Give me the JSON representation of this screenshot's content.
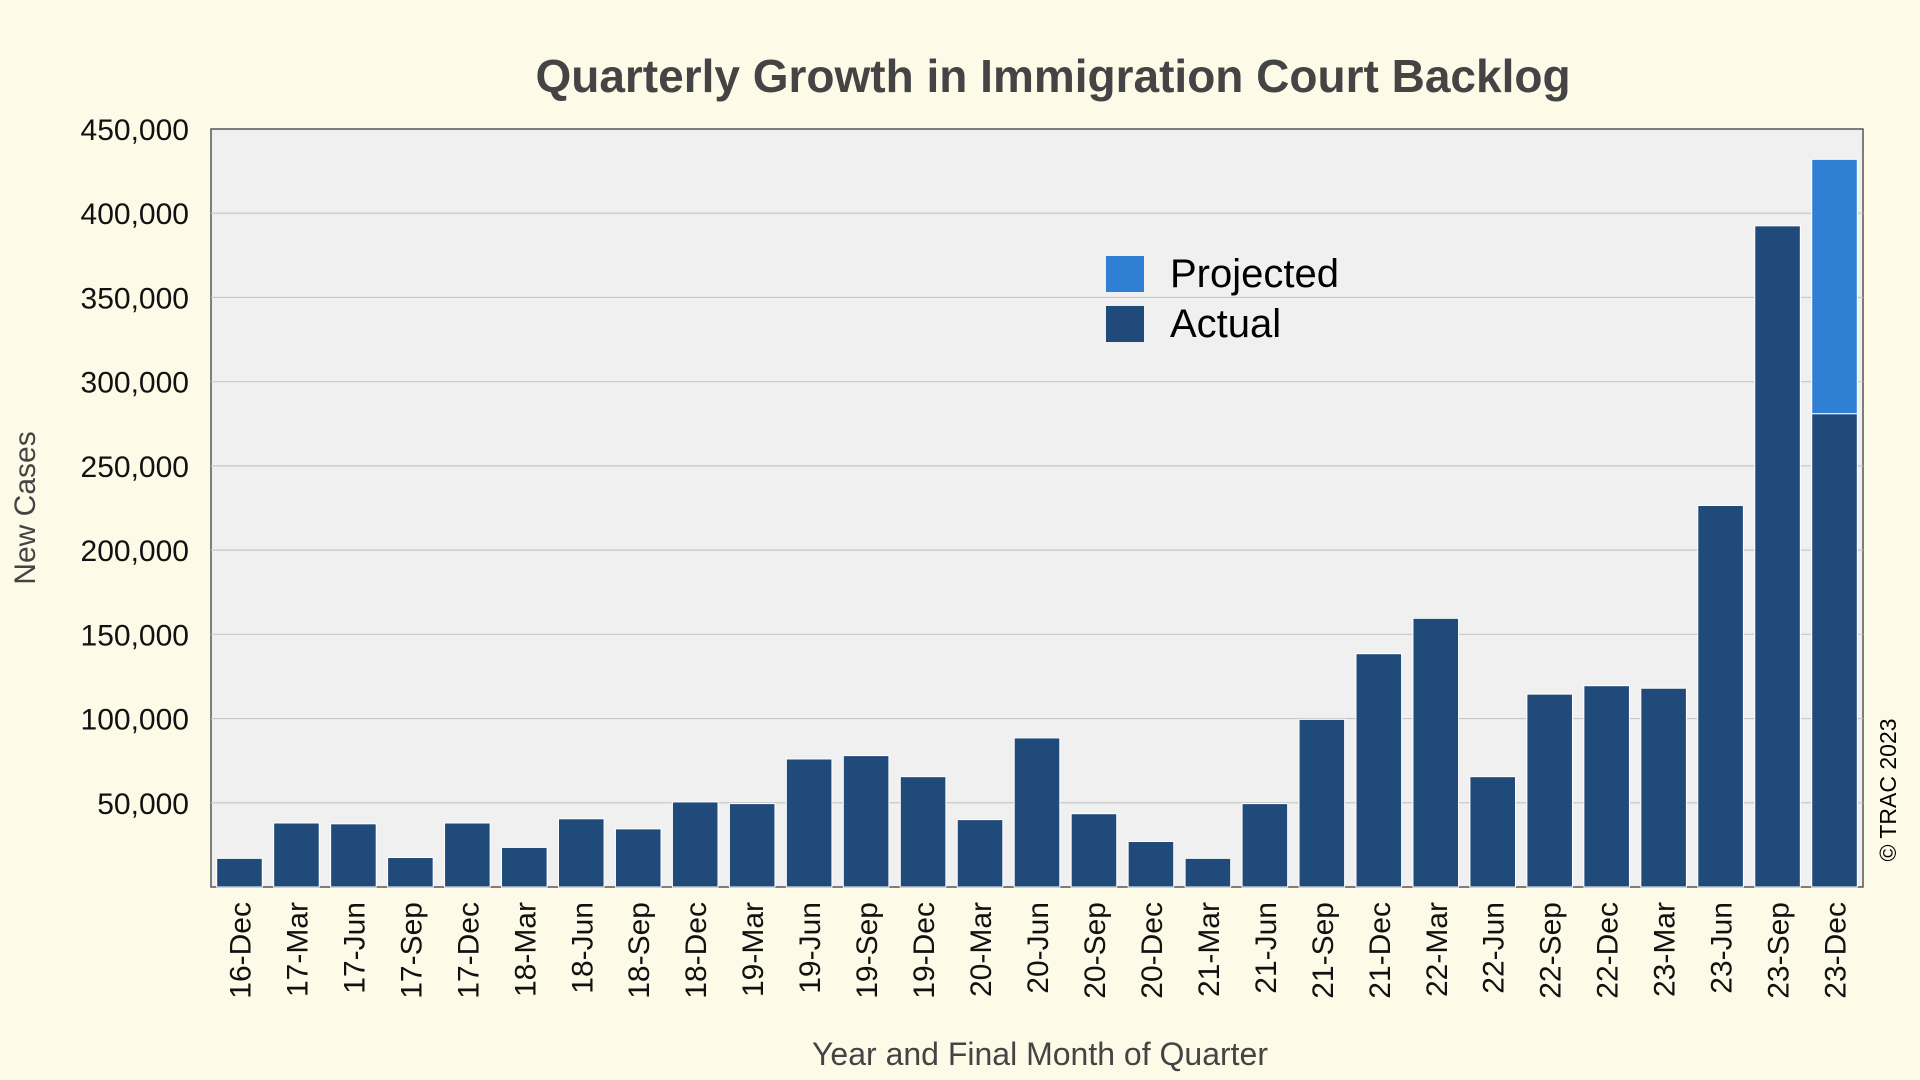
{
  "chart_data": {
    "type": "bar",
    "title": "Quarterly Growth in Immigration Court Backlog",
    "xlabel": "Year and Final Month of Quarter",
    "ylabel": "New Cases",
    "ylim": [
      0,
      450000
    ],
    "yticks": [
      50000,
      100000,
      150000,
      200000,
      250000,
      300000,
      350000,
      400000,
      450000
    ],
    "ytick_labels": [
      "50,000",
      "100,000",
      "150,000",
      "200,000",
      "250,000",
      "300,000",
      "350,000",
      "400,000",
      "450,000"
    ],
    "grid": true,
    "legend_position": "upper-middle",
    "categories": [
      "16-Dec",
      "17-Mar",
      "17-Jun",
      "17-Sep",
      "17-Dec",
      "18-Mar",
      "18-Jun",
      "18-Sep",
      "18-Dec",
      "19-Mar",
      "19-Jun",
      "19-Sep",
      "19-Dec",
      "20-Mar",
      "20-Jun",
      "20-Sep",
      "20-Dec",
      "21-Mar",
      "21-Jun",
      "21-Sep",
      "21-Dec",
      "22-Mar",
      "22-Jun",
      "22-Sep",
      "22-Dec",
      "23-Mar",
      "23-Jun",
      "23-Sep",
      "23-Dec"
    ],
    "series": [
      {
        "name": "Actual",
        "color": "#1f4a7a",
        "values": [
          17000,
          38000,
          37500,
          17500,
          38000,
          23500,
          40500,
          34500,
          50500,
          49500,
          76000,
          78000,
          65500,
          40000,
          88500,
          43500,
          27000,
          17000,
          49500,
          99500,
          138500,
          159500,
          65500,
          114500,
          119500,
          118000,
          226500,
          392500,
          281000
        ]
      },
      {
        "name": "Projected",
        "color": "#2f7fd4",
        "values": [
          0,
          0,
          0,
          0,
          0,
          0,
          0,
          0,
          0,
          0,
          0,
          0,
          0,
          0,
          0,
          0,
          0,
          0,
          0,
          0,
          0,
          0,
          0,
          0,
          0,
          0,
          0,
          0,
          151000
        ]
      }
    ],
    "legend": [
      "Projected",
      "Actual"
    ],
    "credit": "© TRAC 2023"
  }
}
